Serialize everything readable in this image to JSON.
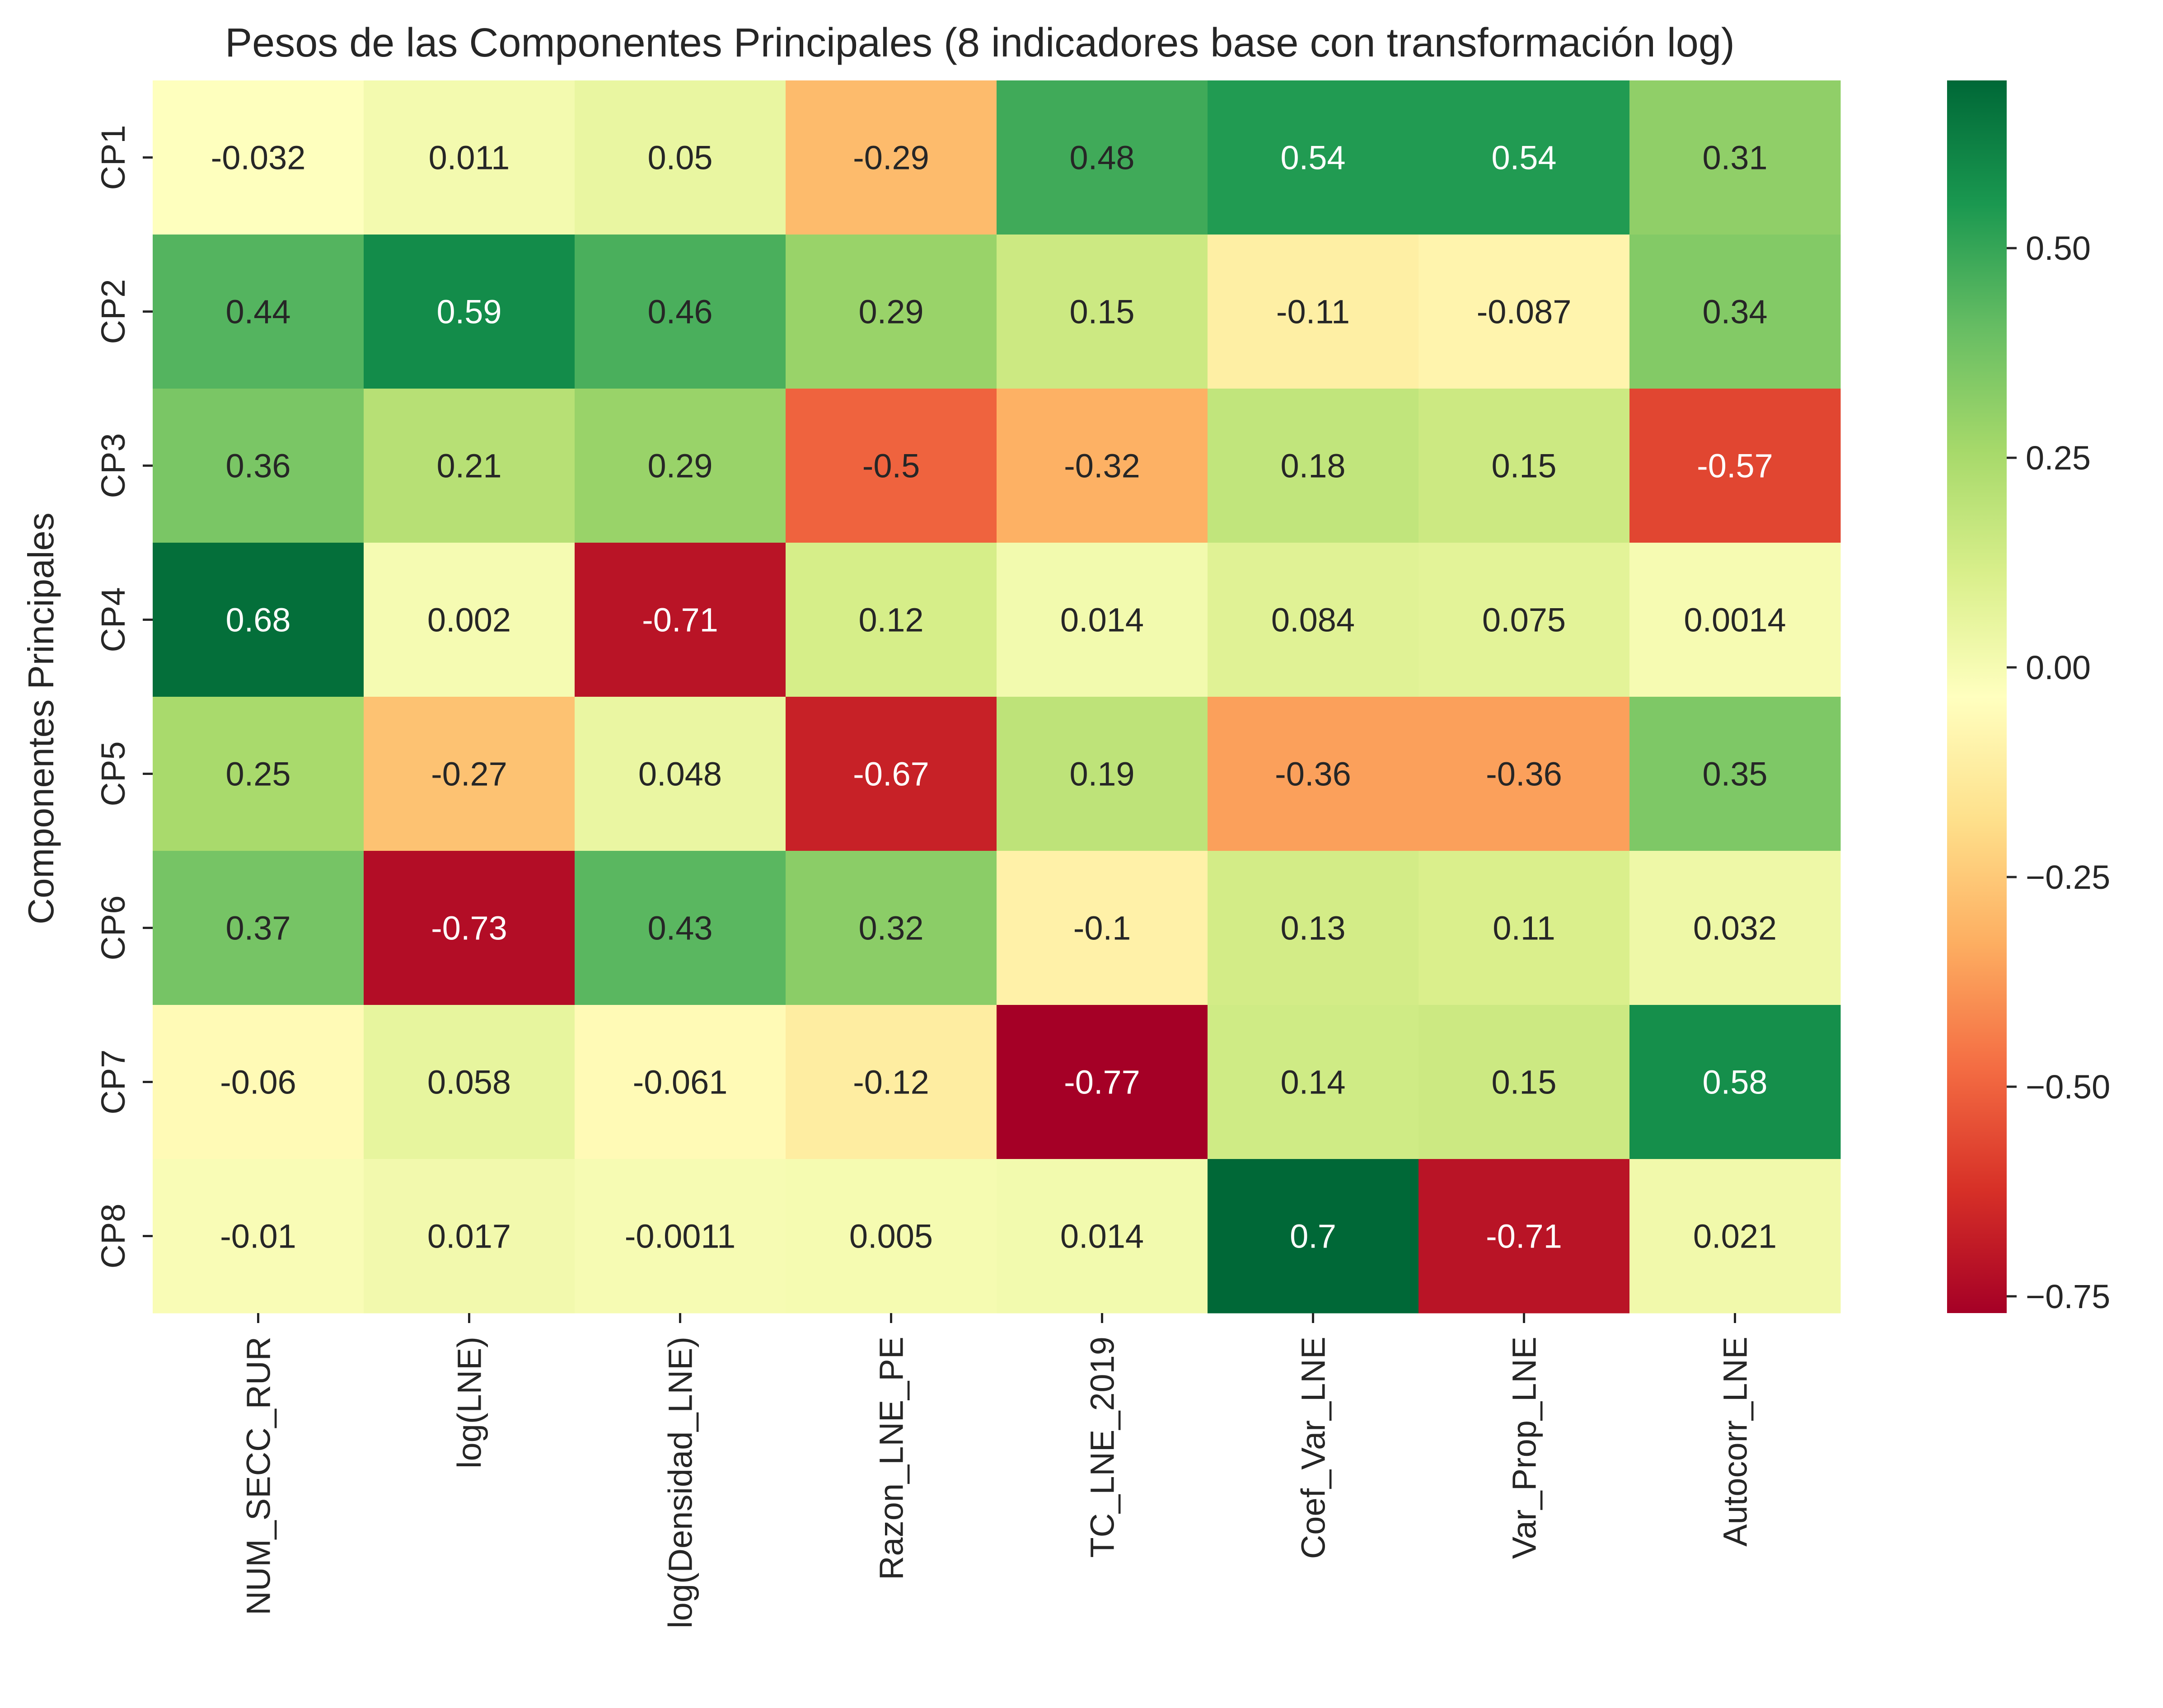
{
  "chart_data": {
    "type": "heatmap",
    "title": "Pesos de las Componentes Principales (8 indicadores base con transformación log)",
    "ylabel": "Componentes Principales",
    "xlabel": "",
    "columns": [
      "NUM_SECC_RUR",
      "log(LNE)",
      "log(Densidad_LNE)",
      "Razon_LNE_PE",
      "TC_LNE_2019",
      "Coef_Var_LNE",
      "Var_Prop_LNE",
      "Autocorr_LNE"
    ],
    "rows": [
      "CP1",
      "CP2",
      "CP3",
      "CP4",
      "CP5",
      "CP6",
      "CP7",
      "CP8"
    ],
    "values": [
      [
        -0.032,
        0.011,
        0.05,
        -0.29,
        0.48,
        0.54,
        0.54,
        0.31
      ],
      [
        0.44,
        0.59,
        0.46,
        0.29,
        0.15,
        -0.11,
        -0.087,
        0.34
      ],
      [
        0.36,
        0.21,
        0.29,
        -0.5,
        -0.32,
        0.18,
        0.15,
        -0.57
      ],
      [
        0.68,
        0.002,
        -0.71,
        0.12,
        0.014,
        0.084,
        0.075,
        0.0014
      ],
      [
        0.25,
        -0.27,
        0.048,
        -0.67,
        0.19,
        -0.36,
        -0.36,
        0.35
      ],
      [
        0.37,
        -0.73,
        0.43,
        0.32,
        -0.1,
        0.13,
        0.11,
        0.032
      ],
      [
        -0.06,
        0.058,
        -0.061,
        -0.12,
        -0.77,
        0.14,
        0.15,
        0.58
      ],
      [
        -0.01,
        0.017,
        -0.0011,
        0.005,
        0.014,
        0.7,
        -0.71,
        0.021
      ]
    ],
    "annotations": [
      [
        "-0.032",
        "0.011",
        "0.05",
        "-0.29",
        "0.48",
        "0.54",
        "0.54",
        "0.31"
      ],
      [
        "0.44",
        "0.59",
        "0.46",
        "0.29",
        "0.15",
        "-0.11",
        "-0.087",
        "0.34"
      ],
      [
        "0.36",
        "0.21",
        "0.29",
        "-0.5",
        "-0.32",
        "0.18",
        "0.15",
        "-0.57"
      ],
      [
        "0.68",
        "0.002",
        "-0.71",
        "0.12",
        "0.014",
        "0.084",
        "0.075",
        "0.0014"
      ],
      [
        "0.25",
        "-0.27",
        "0.048",
        "-0.67",
        "0.19",
        "-0.36",
        "-0.36",
        "0.35"
      ],
      [
        "0.37",
        "-0.73",
        "0.43",
        "0.32",
        "-0.1",
        "0.13",
        "0.11",
        "0.032"
      ],
      [
        "-0.06",
        "0.058",
        "-0.061",
        "-0.12",
        "-0.77",
        "0.14",
        "0.15",
        "0.58"
      ],
      [
        "-0.01",
        "0.017",
        "-0.0011",
        "0.005",
        "0.014",
        "0.7",
        "-0.71",
        "0.021"
      ]
    ],
    "colormap": "RdYlGn",
    "color_range": [
      -0.77,
      0.7
    ],
    "colorbar_ticks": [
      0.5,
      0.25,
      0.0,
      -0.25,
      -0.5,
      -0.75
    ],
    "colorbar_tick_labels": [
      "0.50",
      "0.25",
      "0.00",
      "−0.25",
      "−0.50",
      "−0.75"
    ],
    "colorbar_stops": [
      "#a50026",
      "#d73027",
      "#f46d43",
      "#fdae61",
      "#fee08b",
      "#ffffbf",
      "#d9ef8b",
      "#a6d96a",
      "#66bd63",
      "#1a9850",
      "#006837"
    ]
  }
}
